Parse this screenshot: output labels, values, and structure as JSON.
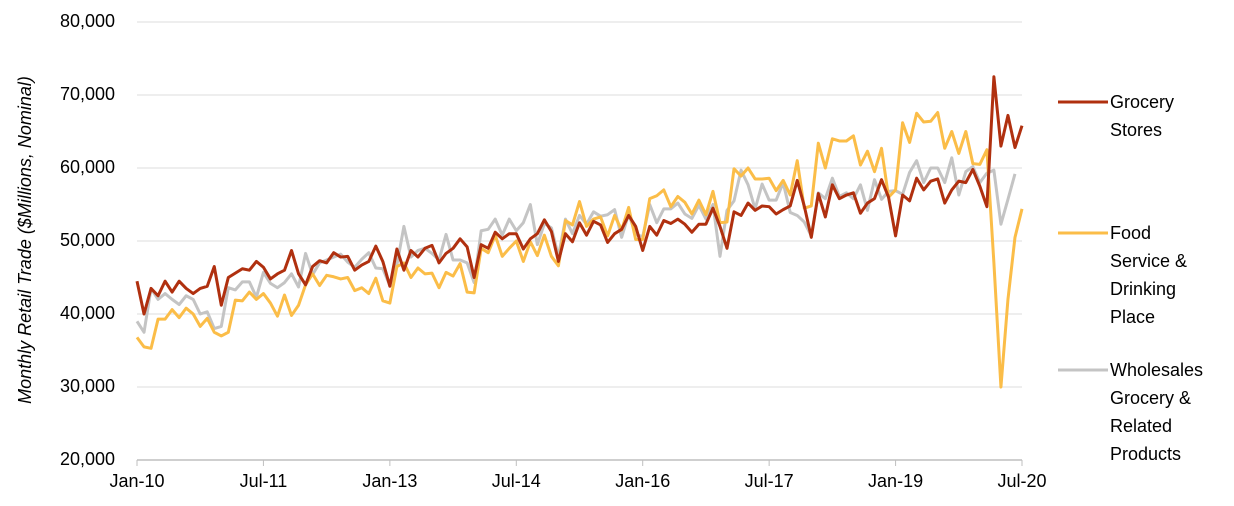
{
  "chart_data": {
    "type": "line",
    "ylabel": "Monthly Retail Trade ($Millions, Nominal)",
    "categories": [
      "Jan-10",
      null,
      null,
      null,
      null,
      null,
      null,
      null,
      null,
      null,
      null,
      null,
      null,
      null,
      null,
      null,
      null,
      null,
      "Jul-11",
      null,
      null,
      null,
      null,
      null,
      null,
      null,
      null,
      null,
      null,
      null,
      null,
      null,
      null,
      null,
      null,
      null,
      "Jan-13",
      null,
      null,
      null,
      null,
      null,
      null,
      null,
      null,
      null,
      null,
      null,
      null,
      null,
      null,
      null,
      null,
      null,
      "Jul-14",
      null,
      null,
      null,
      null,
      null,
      null,
      null,
      null,
      null,
      null,
      null,
      null,
      null,
      null,
      null,
      null,
      null,
      "Jan-16",
      null,
      null,
      null,
      null,
      null,
      null,
      null,
      null,
      null,
      null,
      null,
      null,
      null,
      null,
      null,
      null,
      null,
      "Jul-17",
      null,
      null,
      null,
      null,
      null,
      null,
      null,
      null,
      null,
      null,
      null,
      null,
      null,
      null,
      null,
      null,
      null,
      "Jan-19",
      null,
      null,
      null,
      null,
      null,
      null,
      null,
      null,
      null,
      null,
      null,
      null,
      null,
      null,
      null,
      null,
      null,
      "Jul-20"
    ],
    "series": [
      {
        "name": "Grocery Stores",
        "color": "#b0300f",
        "values": [
          44500,
          40000,
          43500,
          42500,
          44500,
          43000,
          44500,
          43500,
          42800,
          43500,
          43800,
          46500,
          41200,
          45000,
          45600,
          46200,
          46000,
          47200,
          46400,
          44800,
          45500,
          46000,
          48700,
          45500,
          44000,
          46500,
          47300,
          47000,
          48400,
          47800,
          47900,
          46000,
          46700,
          47200,
          49300,
          47200,
          43800,
          48900,
          46000,
          48700,
          47800,
          49000,
          49400,
          47000,
          48300,
          49000,
          50300,
          49200,
          45000,
          49500,
          49000,
          51200,
          50300,
          51000,
          51000,
          48900,
          50300,
          51000,
          52900,
          51300,
          47200,
          51000,
          49900,
          52500,
          50800,
          52700,
          52200,
          49800,
          51000,
          51600,
          53500,
          52000,
          48700,
          52000,
          50800,
          52800,
          52400,
          53000,
          52300,
          51200,
          52300,
          52300,
          54500,
          52000,
          49000,
          54000,
          53500,
          55200,
          54200,
          54800,
          54700,
          53700,
          54300,
          54800,
          58300,
          54800,
          50500,
          56500,
          53300,
          57700,
          55800,
          56300,
          56600,
          53800,
          55200,
          55800,
          58400,
          56000,
          50700,
          56300,
          55500,
          58600,
          57000,
          58200,
          58500,
          55200,
          57000,
          58200,
          58000,
          59800,
          57500,
          54700,
          72500,
          63000,
          67200,
          62800,
          65800
        ]
      },
      {
        "name": "Food Service & Drinking Place",
        "color": "#fbbd48",
        "values": [
          36800,
          35500,
          35300,
          39300,
          39300,
          40600,
          39500,
          40800,
          40000,
          38300,
          39400,
          37500,
          37000,
          37500,
          41900,
          41800,
          43000,
          42000,
          42800,
          41500,
          39700,
          42600,
          39800,
          41200,
          44000,
          45500,
          43900,
          45300,
          45100,
          44800,
          45000,
          43200,
          43600,
          42800,
          44900,
          41800,
          41500,
          46500,
          47000,
          45000,
          46300,
          45500,
          45600,
          43600,
          45700,
          45200,
          46900,
          43000,
          42900,
          49000,
          48400,
          50800,
          47900,
          49000,
          50000,
          47200,
          49900,
          48000,
          50800,
          47900,
          46600,
          52800,
          52200,
          55400,
          52000,
          53000,
          53300,
          50700,
          53500,
          51500,
          54600,
          50200,
          50200,
          55800,
          56200,
          57000,
          54700,
          56100,
          55300,
          53700,
          55600,
          53600,
          56800,
          52500,
          52600,
          59900,
          58900,
          60000,
          58500,
          58500,
          58600,
          56900,
          58300,
          56300,
          61000,
          54500,
          54800,
          63400,
          60000,
          64000,
          63700,
          63700,
          64400,
          60400,
          62300,
          59500,
          62700,
          56000,
          57000,
          66200,
          63500,
          67500,
          66300,
          66400,
          67600,
          62700,
          65000,
          62000,
          65000,
          60600,
          60500,
          62500,
          47000,
          30000,
          42000,
          50500,
          54400
        ]
      },
      {
        "name": "Wholesales Grocery & Related Products",
        "color": "#c4c4c4",
        "values": [
          39000,
          37500,
          43500,
          42000,
          42800,
          42000,
          41300,
          42500,
          42000,
          40000,
          40300,
          38000,
          38300,
          43600,
          43300,
          44400,
          44400,
          42300,
          45700,
          44200,
          43600,
          44300,
          45500,
          43700,
          48300,
          45400,
          47000,
          47400,
          47800,
          48200,
          47100,
          46400,
          47500,
          48400,
          46300,
          46200,
          43900,
          46700,
          52000,
          47800,
          48700,
          49000,
          48300,
          47400,
          50900,
          47400,
          47400,
          47000,
          44300,
          51400,
          51600,
          53000,
          50800,
          53000,
          51400,
          52500,
          55000,
          49500,
          52400,
          51800,
          47900,
          53000,
          51000,
          53500,
          52300,
          54000,
          53400,
          53600,
          54300,
          50500,
          53700,
          50900,
          50600,
          55000,
          52500,
          54400,
          54400,
          55200,
          53700,
          53100,
          54900,
          53000,
          55000,
          47900,
          54200,
          55500,
          59700,
          57700,
          54400,
          57800,
          55600,
          55600,
          58000,
          53900,
          53500,
          52600,
          50700,
          56600,
          55800,
          58600,
          56100,
          56600,
          55800,
          57700,
          54200,
          58400,
          55700,
          56800,
          56900,
          56400,
          59400,
          61000,
          58000,
          60000,
          60000,
          58000,
          61400,
          56300,
          59500,
          60200,
          58000,
          59300,
          59700,
          52300,
          55700,
          59200,
          null
        ]
      }
    ],
    "ylim": [
      20000,
      80000
    ],
    "yticks": [
      {
        "value": 20000,
        "label": "20,000"
      },
      {
        "value": 30000,
        "label": "30,000"
      },
      {
        "value": 40000,
        "label": "40,000"
      },
      {
        "value": 50000,
        "label": "50,000"
      },
      {
        "value": 60000,
        "label": "60,000"
      },
      {
        "value": 70000,
        "label": "70,000"
      },
      {
        "value": 80000,
        "label": "80,000"
      }
    ],
    "grid": true,
    "legend": "right"
  }
}
